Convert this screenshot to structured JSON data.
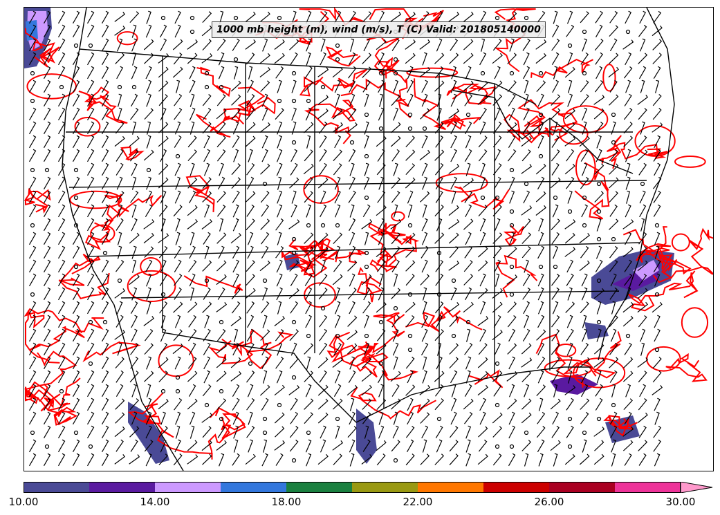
{
  "title": "1000 mb height (m), wind (m/s), T (C) Valid: 201805140000",
  "map": {
    "temperature_contour_color": "#ff0000",
    "boundary_color": "#000000",
    "wind_barb_color": "#000000"
  },
  "colorbar": {
    "min": 10,
    "max": 30,
    "colors": [
      "#4a4a96",
      "#5a1aa0",
      "#cc99ff",
      "#3377dd",
      "#1a8040",
      "#999912",
      "#ff7700",
      "#cc0000",
      "#aa0022",
      "#ee3399"
    ],
    "extend_color": "#ff99cc",
    "tick_labels": [
      "10.00",
      "14.00",
      "18.00",
      "22.00",
      "26.00",
      "30.00"
    ],
    "tick_values": [
      10,
      14,
      18,
      22,
      26,
      30
    ]
  }
}
